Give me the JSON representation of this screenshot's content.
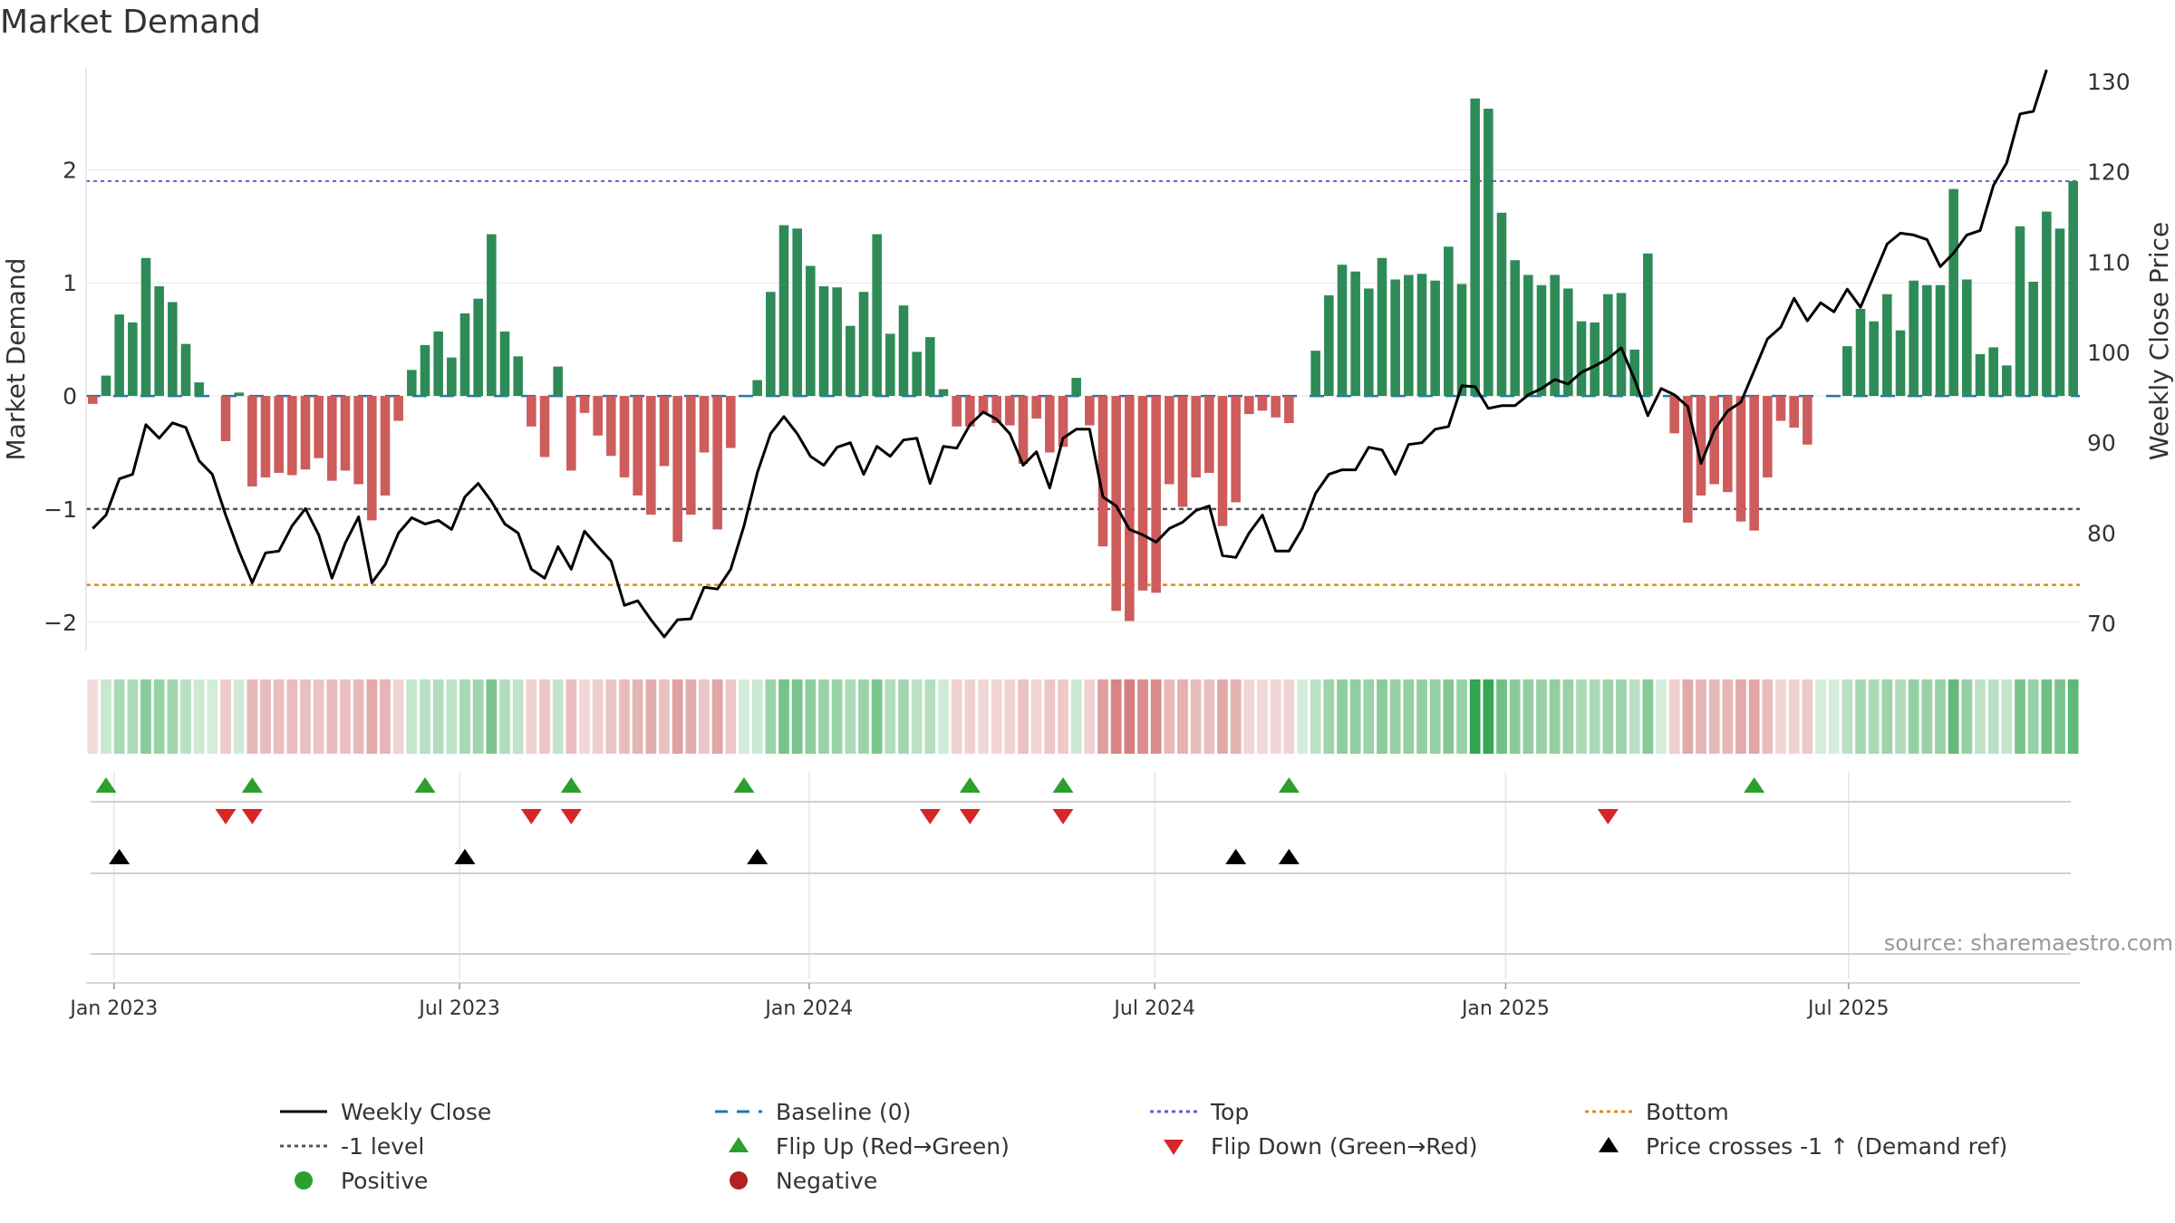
{
  "title": "Market Demand",
  "source": "source: sharemaestro.com",
  "colors": {
    "positive": "#2e8b57",
    "negative": "#cd5c5c",
    "close": "#000000",
    "baseline": "#1f77b4",
    "top": "#6a5acd",
    "bottom": "#e08a1e",
    "neg1": "#555555",
    "flip_up": "#2ca02c",
    "flip_down": "#d62728",
    "cross": "#000000"
  },
  "chart_data": {
    "type": "bar",
    "left_axis": {
      "label": "Market Demand",
      "ylim": [
        -2.25,
        2.9
      ],
      "ticks": [
        2,
        1,
        0,
        -1,
        -2
      ],
      "tick_labels": [
        "2",
        "1",
        "0",
        "−1",
        "−2"
      ]
    },
    "right_axis": {
      "label": "Weekly Close Price",
      "ylim": [
        67,
        131.5
      ],
      "ticks": [
        130,
        120,
        110,
        100,
        90,
        80,
        70
      ],
      "tick_labels": [
        "130",
        "120",
        "110",
        "100",
        "90",
        "80",
        "70"
      ]
    },
    "x_ticks": [
      {
        "week": 1.6,
        "label": "Jan 2023"
      },
      {
        "week": 27.6,
        "label": "Jul 2023"
      },
      {
        "week": 53.9,
        "label": "Jan 2024"
      },
      {
        "week": 79.9,
        "label": "Jul 2024"
      },
      {
        "week": 106.3,
        "label": "Jan 2025"
      },
      {
        "week": 132.1,
        "label": "Jul 2025"
      }
    ],
    "reference_lines": {
      "top": 1.9,
      "bottom": -1.67,
      "minus_one": -1,
      "baseline": 0
    },
    "demand": [
      -0.07,
      0.18,
      0.72,
      0.65,
      1.22,
      0.97,
      0.83,
      0.46,
      0.12,
      0,
      -0.4,
      0.03,
      -0.8,
      -0.72,
      -0.68,
      -0.7,
      -0.65,
      -0.55,
      -0.75,
      -0.66,
      -0.78,
      -1.1,
      -0.88,
      -0.22,
      0.23,
      0.45,
      0.57,
      0.34,
      0.73,
      0.86,
      1.43,
      0.57,
      0.35,
      -0.27,
      -0.54,
      0.26,
      -0.66,
      -0.15,
      -0.35,
      -0.53,
      -0.72,
      -0.88,
      -1.05,
      -0.62,
      -1.29,
      -1.05,
      -0.5,
      -1.18,
      -0.46,
      0,
      0.14,
      0.92,
      1.51,
      1.48,
      1.15,
      0.97,
      0.96,
      0.62,
      0.92,
      1.43,
      0.55,
      0.8,
      0.39,
      0.52,
      0.06,
      -0.27,
      -0.27,
      -0.16,
      -0.24,
      -0.26,
      -0.6,
      -0.2,
      -0.5,
      -0.45,
      0.16,
      -0.26,
      -1.33,
      -1.9,
      -1.99,
      -1.72,
      -1.74,
      -0.78,
      -0.98,
      -0.72,
      -0.68,
      -1.15,
      -0.94,
      -0.16,
      -0.13,
      -0.19,
      -0.24,
      0,
      0.4,
      0.89,
      1.16,
      1.1,
      0.95,
      1.22,
      1.03,
      1.07,
      1.08,
      1.02,
      1.32,
      0.99,
      2.63,
      2.54,
      1.62,
      1.2,
      1.07,
      0.98,
      1.07,
      0.95,
      0.66,
      0.65,
      0.9,
      0.91,
      0.41,
      1.26,
      0,
      -0.33,
      -1.12,
      -0.88,
      -0.78,
      -0.85,
      -1.11,
      -1.19,
      -0.72,
      -0.22,
      -0.28,
      -0.43,
      0,
      0,
      0.44,
      0.77,
      0.66,
      0.9,
      0.58,
      1.02,
      0.98,
      0.98,
      1.83,
      1.03,
      0.37,
      0.43,
      0.27,
      1.5,
      1.01,
      1.63,
      1.48,
      1.9
    ],
    "close": [
      80.5,
      82,
      86,
      86.5,
      92,
      90.5,
      92.2,
      91.7,
      88,
      86.5,
      82,
      78,
      74.5,
      77.8,
      78,
      80.8,
      82.7,
      79.8,
      75,
      78.9,
      81.8,
      74.5,
      76.5,
      80,
      81.7,
      81,
      81.4,
      80.4,
      84,
      85.5,
      83.5,
      81,
      80,
      76,
      75,
      78.5,
      76,
      80.2,
      78.5,
      76.9,
      72,
      72.5,
      70.4,
      68.5,
      70.4,
      70.5,
      74,
      73.8,
      76,
      80.8,
      86.7,
      91,
      92.9,
      91,
      88.5,
      87.5,
      89.5,
      90,
      86.5,
      89.6,
      88.5,
      90.3,
      90.5,
      85.5,
      89.6,
      89.4,
      92,
      93.4,
      92.6,
      91,
      87.5,
      89,
      85,
      90.5,
      91.5,
      91.5,
      84,
      83,
      80.4,
      79.8,
      79,
      80.5,
      81.2,
      82.5,
      83,
      77.5,
      77.3,
      80,
      82,
      78,
      78,
      80.5,
      84.4,
      86.5,
      87,
      87,
      89.5,
      89.2,
      86.5,
      89.8,
      90,
      91.5,
      91.8,
      96.3,
      96.2,
      93.8,
      94.1,
      94.1,
      95.3,
      96,
      97,
      96.5,
      97.8,
      98.5,
      99.3,
      100.5,
      97,
      93,
      96,
      95.3,
      94,
      87.7,
      91.4,
      93.5,
      94.5,
      98,
      101.5,
      102.8,
      106,
      103.5,
      105.5,
      104.5,
      107,
      105,
      108.5,
      112,
      113.2,
      113,
      112.5,
      109.5,
      111,
      113,
      113.5,
      118.5,
      121,
      126.4,
      126.7,
      131.3
    ],
    "flip_up_weeks": [
      1,
      12,
      25,
      36,
      49,
      66,
      73,
      90,
      125
    ],
    "flip_down_weeks": [
      10,
      12,
      33,
      36,
      63,
      66,
      73,
      114
    ],
    "cross_weeks": [
      2,
      28,
      50,
      86,
      90
    ],
    "legend": [
      {
        "name": "legend-weekly-close",
        "label": "Weekly Close",
        "symbol": "line"
      },
      {
        "name": "legend-baseline",
        "label": "Baseline (0)",
        "symbol": "dash-blue"
      },
      {
        "name": "legend-top",
        "label": "Top",
        "symbol": "dot-purple"
      },
      {
        "name": "legend-bottom",
        "label": "Bottom",
        "symbol": "dot-orange"
      },
      {
        "name": "legend-minus-one",
        "label": "-1 level",
        "symbol": "dot-gray"
      },
      {
        "name": "legend-flip-up",
        "label": "Flip Up (Red→Green)",
        "symbol": "tri-up-green"
      },
      {
        "name": "legend-flip-down",
        "label": "Flip Down (Green→Red)",
        "symbol": "tri-down-red"
      },
      {
        "name": "legend-cross",
        "label": "Price crosses -1 ↑ (Demand ref)",
        "symbol": "tri-up-black"
      },
      {
        "name": "legend-positive",
        "label": "Positive",
        "symbol": "circle-green"
      },
      {
        "name": "legend-negative",
        "label": "Negative",
        "symbol": "circle-red"
      }
    ]
  }
}
